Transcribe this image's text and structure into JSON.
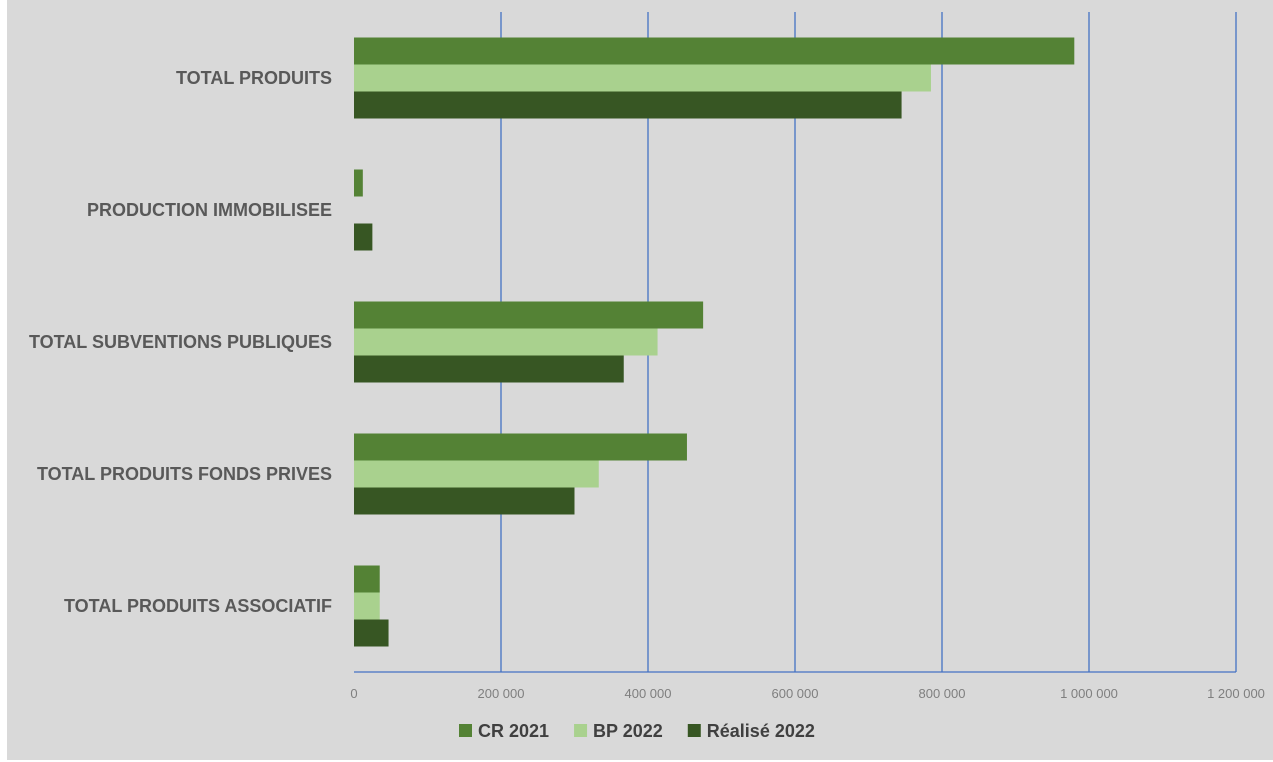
{
  "chart_data": {
    "type": "bar",
    "orientation": "horizontal",
    "categories": [
      "TOTAL PRODUITS",
      "PRODUCTION IMMOBILISEE",
      "TOTAL SUBVENTIONS PUBLIQUES",
      "TOTAL PRODUITS FONDS PRIVES",
      "TOTAL PRODUITS ASSOCIATIF"
    ],
    "series": [
      {
        "name": "CR 2021",
        "color": "#548235",
        "values": [
          980000,
          12000,
          475000,
          453000,
          35000
        ]
      },
      {
        "name": "BP 2022",
        "color": "#a9d18e",
        "values": [
          785000,
          0,
          413000,
          333000,
          35000
        ]
      },
      {
        "name": "Réalisé 2022",
        "color": "#375623",
        "values": [
          745000,
          25000,
          367000,
          300000,
          47000
        ]
      }
    ],
    "xlim": [
      0,
      1200000
    ],
    "xticks": [
      0,
      200000,
      400000,
      600000,
      800000,
      1000000,
      1200000
    ],
    "xtick_labels": [
      "0",
      "200 000",
      "400 000",
      "600 000",
      "800 000",
      "1 000 000",
      "1 200 000"
    ],
    "grid": "vertical",
    "grid_color": "#4472c4",
    "legend_position": "bottom",
    "background": "#d9d9d9"
  }
}
